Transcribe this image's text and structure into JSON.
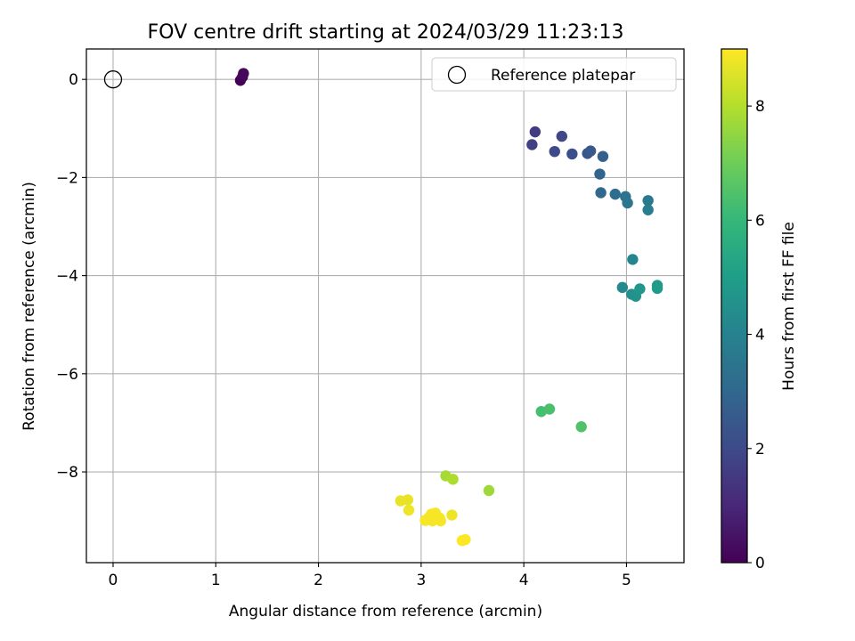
{
  "chart_data": {
    "type": "scatter",
    "title": "FOV centre drift starting at 2024/03/29 11:23:13",
    "xlabel": "Angular distance from reference (arcmin)",
    "ylabel": "Rotation from reference (arcmin)",
    "xlim": [
      -0.26,
      5.56
    ],
    "ylim": [
      -9.85,
      0.62
    ],
    "xticks": [
      0,
      1,
      2,
      3,
      4,
      5
    ],
    "yticks": [
      0,
      -2,
      -4,
      -6,
      -8
    ],
    "grid": true,
    "legend": {
      "placement": "top-right",
      "entries": [
        "Reference platepar"
      ]
    },
    "reference_point": {
      "x": 0,
      "y": 0,
      "label": "Reference platepar",
      "marker": "open-circle"
    },
    "colorbar": {
      "label": "Hours from first FF file",
      "colormap": "viridis",
      "range": [
        0,
        9
      ],
      "ticks": [
        0,
        2,
        4,
        6,
        8
      ]
    },
    "series": [
      {
        "x": [
          1.24,
          1.26,
          1.27,
          4.11,
          4.08,
          4.37,
          4.3,
          4.47,
          4.62,
          4.65,
          4.77,
          4.74,
          4.75,
          4.89,
          4.99,
          5.01,
          5.21,
          5.21,
          5.06,
          4.96,
          5.05,
          5.09,
          5.13,
          5.3,
          5.3,
          4.17,
          4.25,
          4.56,
          3.66,
          3.24,
          3.31,
          2.8,
          2.87,
          2.88,
          3.3,
          3.1,
          3.14,
          3.07,
          3.18,
          3.04,
          3.11,
          3.19,
          3.4,
          3.43
        ],
        "y": [
          -0.02,
          0.05,
          0.12,
          -1.07,
          -1.33,
          -1.16,
          -1.47,
          -1.52,
          -1.51,
          -1.46,
          -1.57,
          -1.93,
          -2.31,
          -2.34,
          -2.39,
          -2.52,
          -2.47,
          -2.66,
          -3.67,
          -4.24,
          -4.38,
          -4.42,
          -4.27,
          -4.2,
          -4.26,
          -6.77,
          -6.72,
          -7.08,
          -8.38,
          -8.08,
          -8.15,
          -8.59,
          -8.57,
          -8.78,
          -8.88,
          -8.86,
          -8.84,
          -8.94,
          -8.94,
          -8.99,
          -9.0,
          -9.0,
          -9.4,
          -9.38
        ],
        "hours": [
          0.0,
          0.1,
          0.2,
          1.6,
          1.7,
          1.9,
          2.0,
          2.2,
          2.4,
          2.5,
          2.7,
          2.9,
          3.0,
          3.2,
          3.4,
          3.5,
          3.7,
          3.8,
          4.1,
          4.3,
          4.5,
          4.6,
          4.7,
          4.8,
          4.9,
          6.3,
          6.4,
          6.5,
          7.7,
          7.8,
          7.9,
          8.7,
          8.7,
          8.8,
          8.8,
          8.9,
          8.9,
          8.9,
          8.9,
          8.9,
          8.9,
          8.9,
          9.0,
          9.0
        ]
      }
    ]
  }
}
